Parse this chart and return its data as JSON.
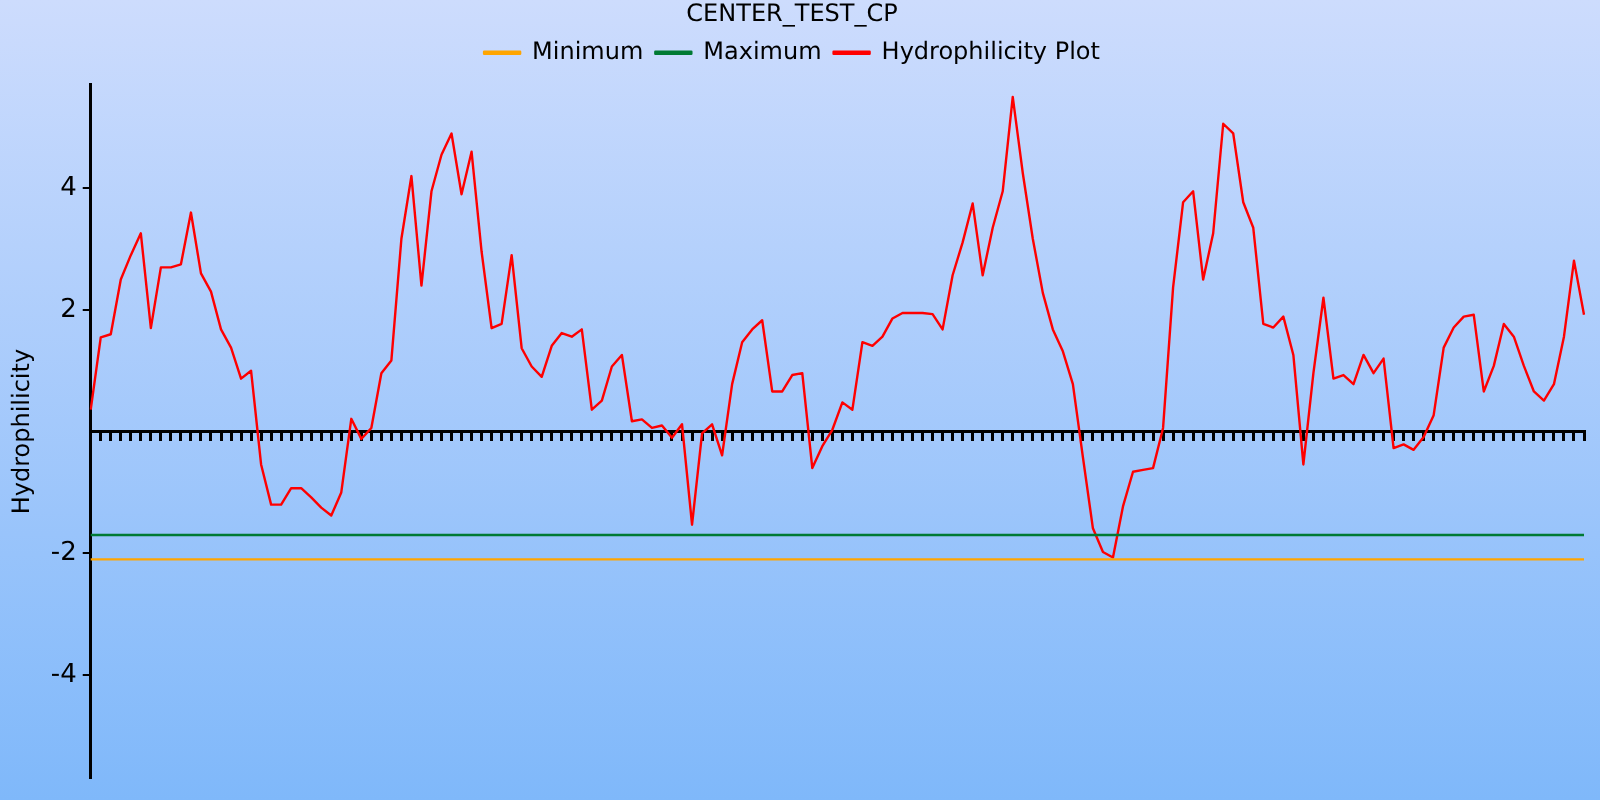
{
  "chart_data": {
    "type": "line",
    "title": "CENTER_TEST_CP",
    "ylabel": "Hydrophilicity",
    "categories": [
      null,
      null,
      null,
      null,
      null,
      null,
      null,
      null,
      null,
      null,
      null,
      null,
      null,
      null,
      null,
      null,
      null,
      null,
      null,
      null,
      null,
      null,
      null,
      null,
      null,
      null,
      null,
      null,
      null,
      null,
      null,
      null,
      null,
      null,
      null,
      null,
      null,
      null,
      null,
      null,
      null,
      null,
      null,
      null,
      null,
      null,
      null,
      null,
      null,
      null,
      null,
      null,
      null,
      null,
      null,
      null,
      null,
      null,
      null,
      null,
      null,
      null,
      null,
      null,
      null,
      null,
      null,
      null,
      null,
      null,
      null,
      null,
      null,
      null,
      null,
      null,
      null,
      null,
      null,
      null,
      null,
      null,
      null,
      null,
      null,
      null,
      null,
      null,
      null,
      null,
      null,
      null,
      null,
      null,
      null,
      null,
      null,
      null,
      null,
      null,
      null,
      null,
      null,
      null,
      null,
      null,
      null,
      null,
      null,
      null,
      null,
      null,
      null,
      null,
      null,
      null,
      null,
      null,
      null,
      null,
      null,
      null,
      null,
      null,
      null,
      null,
      null,
      null,
      null,
      null,
      null,
      null,
      null,
      null,
      null,
      null,
      null,
      null,
      null,
      null,
      null,
      null,
      null,
      null,
      null,
      null,
      null,
      null,
      null,
      null
    ],
    "series": [
      {
        "name": "Minimum",
        "color": "#ffa500",
        "values": [
          -2.1,
          -2.1,
          -2.1,
          -2.1,
          -2.1,
          -2.1,
          -2.1,
          -2.1,
          -2.1,
          -2.1,
          -2.1,
          -2.1,
          -2.1,
          -2.1,
          -2.1,
          -2.1,
          -2.1,
          -2.1,
          -2.1,
          -2.1,
          -2.1,
          -2.1,
          -2.1,
          -2.1,
          -2.1,
          -2.1,
          -2.1,
          -2.1,
          -2.1,
          -2.1,
          -2.1,
          -2.1,
          -2.1,
          -2.1,
          -2.1,
          -2.1,
          -2.1,
          -2.1,
          -2.1,
          -2.1,
          -2.1,
          -2.1,
          -2.1,
          -2.1,
          -2.1,
          -2.1,
          -2.1,
          -2.1,
          -2.1,
          -2.1,
          -2.1,
          -2.1,
          -2.1,
          -2.1,
          -2.1,
          -2.1,
          -2.1,
          -2.1,
          -2.1,
          -2.1,
          -2.1,
          -2.1,
          -2.1,
          -2.1,
          -2.1,
          -2.1,
          -2.1,
          -2.1,
          -2.1,
          -2.1,
          -2.1,
          -2.1,
          -2.1,
          -2.1,
          -2.1,
          -2.1,
          -2.1,
          -2.1,
          -2.1,
          -2.1,
          -2.1,
          -2.1,
          -2.1,
          -2.1,
          -2.1,
          -2.1,
          -2.1,
          -2.1,
          -2.1,
          -2.1,
          -2.1,
          -2.1,
          -2.1,
          -2.1,
          -2.1,
          -2.1,
          -2.1,
          -2.1,
          -2.1,
          -2.1,
          -2.1,
          -2.1,
          -2.1,
          -2.1,
          -2.1,
          -2.1,
          -2.1,
          -2.1,
          -2.1,
          -2.1,
          -2.1,
          -2.1,
          -2.1,
          -2.1,
          -2.1,
          -2.1,
          -2.1,
          -2.1,
          -2.1,
          -2.1,
          -2.1,
          -2.1,
          -2.1,
          -2.1,
          -2.1,
          -2.1,
          -2.1,
          -2.1,
          -2.1,
          -2.1,
          -2.1,
          -2.1,
          -2.1,
          -2.1,
          -2.1,
          -2.1,
          -2.1,
          -2.1,
          -2.1,
          -2.1,
          -2.1,
          -2.1,
          -2.1,
          -2.1,
          -2.1,
          -2.1,
          -2.1,
          -2.1,
          -2.1,
          -2.1
        ]
      },
      {
        "name": "Maximum",
        "color": "#007a33",
        "values": [
          -1.7,
          -1.7,
          -1.7,
          -1.7,
          -1.7,
          -1.7,
          -1.7,
          -1.7,
          -1.7,
          -1.7,
          -1.7,
          -1.7,
          -1.7,
          -1.7,
          -1.7,
          -1.7,
          -1.7,
          -1.7,
          -1.7,
          -1.7,
          -1.7,
          -1.7,
          -1.7,
          -1.7,
          -1.7,
          -1.7,
          -1.7,
          -1.7,
          -1.7,
          -1.7,
          -1.7,
          -1.7,
          -1.7,
          -1.7,
          -1.7,
          -1.7,
          -1.7,
          -1.7,
          -1.7,
          -1.7,
          -1.7,
          -1.7,
          -1.7,
          -1.7,
          -1.7,
          -1.7,
          -1.7,
          -1.7,
          -1.7,
          -1.7,
          -1.7,
          -1.7,
          -1.7,
          -1.7,
          -1.7,
          -1.7,
          -1.7,
          -1.7,
          -1.7,
          -1.7,
          -1.7,
          -1.7,
          -1.7,
          -1.7,
          -1.7,
          -1.7,
          -1.7,
          -1.7,
          -1.7,
          -1.7,
          -1.7,
          -1.7,
          -1.7,
          -1.7,
          -1.7,
          -1.7,
          -1.7,
          -1.7,
          -1.7,
          -1.7,
          -1.7,
          -1.7,
          -1.7,
          -1.7,
          -1.7,
          -1.7,
          -1.7,
          -1.7,
          -1.7,
          -1.7,
          -1.7,
          -1.7,
          -1.7,
          -1.7,
          -1.7,
          -1.7,
          -1.7,
          -1.7,
          -1.7,
          -1.7,
          -1.7,
          -1.7,
          -1.7,
          -1.7,
          -1.7,
          -1.7,
          -1.7,
          -1.7,
          -1.7,
          -1.7,
          -1.7,
          -1.7,
          -1.7,
          -1.7,
          -1.7,
          -1.7,
          -1.7,
          -1.7,
          -1.7,
          -1.7,
          -1.7,
          -1.7,
          -1.7,
          -1.7,
          -1.7,
          -1.7,
          -1.7,
          -1.7,
          -1.7,
          -1.7,
          -1.7,
          -1.7,
          -1.7,
          -1.7,
          -1.7,
          -1.7,
          -1.7,
          -1.7,
          -1.7,
          -1.7,
          -1.7,
          -1.7,
          -1.7,
          -1.7,
          -1.7,
          -1.7,
          -1.7,
          -1.7,
          -1.7,
          -1.7
        ]
      },
      {
        "name": "Hydrophilicity Plot",
        "color": "#ff0000",
        "values": [
          0.36,
          1.55,
          1.6,
          2.5,
          2.9,
          3.26,
          1.7,
          2.7,
          2.7,
          2.75,
          3.6,
          2.6,
          2.3,
          1.68,
          1.38,
          0.87,
          1.0,
          -0.54,
          -1.2,
          -1.2,
          -0.93,
          -0.93,
          -1.08,
          -1.25,
          -1.38,
          -1.0,
          0.21,
          -0.12,
          0.06,
          0.96,
          1.17,
          3.17,
          4.2,
          2.4,
          3.95,
          4.55,
          4.9,
          3.9,
          4.6,
          2.96,
          1.7,
          1.77,
          2.9,
          1.37,
          1.07,
          0.9,
          1.41,
          1.62,
          1.56,
          1.68,
          0.36,
          0.51,
          1.07,
          1.26,
          0.17,
          0.2,
          0.06,
          0.1,
          -0.1,
          0.12,
          -1.53,
          -0.03,
          0.12,
          -0.39,
          0.78,
          1.47,
          1.68,
          1.83,
          0.66,
          0.66,
          0.93,
          0.96,
          -0.6,
          -0.24,
          0.03,
          0.48,
          0.36,
          1.47,
          1.41,
          1.56,
          1.86,
          1.95,
          1.95,
          1.95,
          1.93,
          1.68,
          2.57,
          3.11,
          3.75,
          2.57,
          3.35,
          3.95,
          5.5,
          4.25,
          3.17,
          2.28,
          1.68,
          1.32,
          0.78,
          -0.42,
          -1.59,
          -1.98,
          -2.07,
          -1.23,
          -0.66,
          -0.63,
          -0.6,
          0.06,
          2.37,
          3.77,
          3.95,
          2.5,
          3.26,
          5.06,
          4.9,
          3.77,
          3.35,
          1.77,
          1.71,
          1.89,
          1.26,
          -0.54,
          0.96,
          2.2,
          0.87,
          0.93,
          0.78,
          1.26,
          0.96,
          1.2,
          -0.27,
          -0.21,
          -0.3,
          -0.09,
          0.27,
          1.38,
          1.71,
          1.89,
          1.92,
          0.66,
          1.08,
          1.77,
          1.56,
          1.08,
          0.66,
          0.51,
          0.78,
          1.56,
          2.81,
          1.92
        ]
      }
    ],
    "ylim": [
      -5.7,
      5.7
    ],
    "yticks": [
      -4,
      -2,
      2,
      4
    ],
    "tick_labels": "y",
    "grid": false,
    "legend": "top",
    "marker": "none",
    "line_style": "solid"
  }
}
